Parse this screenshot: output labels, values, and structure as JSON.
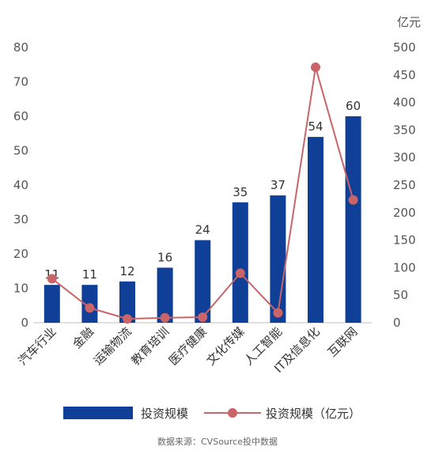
{
  "chart_data": {
    "type": "bar",
    "categories": [
      "汽车行业",
      "金融",
      "运输物流",
      "教育培训",
      "医疗健康",
      "文化传媒",
      "人工智能",
      "IT及信息化",
      "互联网"
    ],
    "series": [
      {
        "name": "投资规模",
        "type": "bar",
        "axis": "left",
        "color": "#0f3f96",
        "values": [
          11,
          11,
          12,
          16,
          24,
          35,
          37,
          54,
          60
        ],
        "data_labels": [
          "11",
          "11",
          "12",
          "16",
          "24",
          "35",
          "37",
          "54",
          "60"
        ]
      },
      {
        "name": "投资规模（亿元）",
        "type": "line",
        "axis": "right",
        "color": "#c96468",
        "values": [
          80,
          27,
          7,
          9,
          10,
          90,
          18,
          464,
          223
        ]
      }
    ],
    "y_left": {
      "min": 0,
      "max": 80,
      "ticks": [
        "0",
        "10",
        "20",
        "30",
        "40",
        "50",
        "60",
        "70",
        "80"
      ]
    },
    "y_right": {
      "min": 0,
      "max": 500,
      "unit": "亿元",
      "ticks": [
        "0",
        "50",
        "100",
        "150",
        "200",
        "250",
        "300",
        "350",
        "400",
        "450",
        "500"
      ]
    },
    "grid": false,
    "legend_position": "bottom",
    "source": "数据来源：CVSource投中数据"
  }
}
